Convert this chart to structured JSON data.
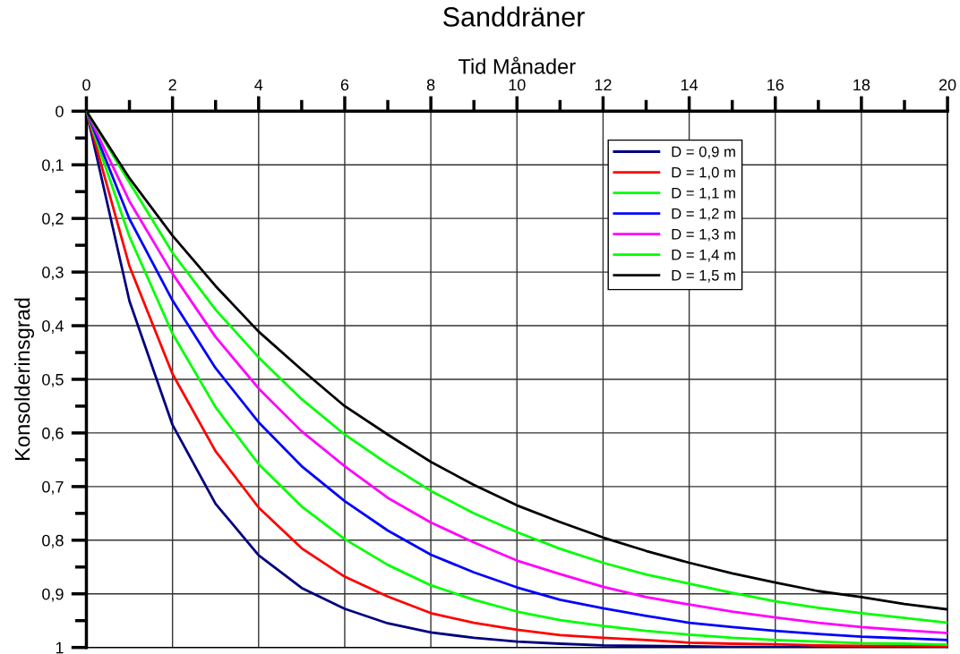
{
  "chart_data": {
    "type": "line",
    "title": "Sanddräner",
    "xlabel": "Tid Månader",
    "ylabel": "Konsolderinsgrad",
    "x": [
      0,
      1,
      2,
      3,
      4,
      5,
      6,
      7,
      8,
      9,
      10,
      11,
      12,
      13,
      14,
      15,
      16,
      17,
      18,
      19,
      20
    ],
    "xlim": [
      0,
      20
    ],
    "ylim": [
      1,
      0
    ],
    "xticks": [
      0,
      {
        "value": 1,
        "label": null
      },
      2,
      {
        "value": 3,
        "label": null
      },
      4,
      {
        "value": 5,
        "label": null
      },
      6,
      {
        "value": 7,
        "label": null
      },
      8,
      {
        "value": 9,
        "label": null
      },
      10,
      {
        "value": 11,
        "label": null
      },
      12,
      {
        "value": 13,
        "label": null
      },
      14,
      {
        "value": 15,
        "label": null
      },
      16,
      {
        "value": 17,
        "label": null
      },
      18,
      {
        "value": 19,
        "label": null
      },
      20
    ],
    "yticks": [
      0,
      {
        "value": 0.05,
        "label": null
      },
      {
        "value": 0.1,
        "label": "0,1"
      },
      {
        "value": 0.15,
        "label": null
      },
      {
        "value": 0.2,
        "label": "0,2"
      },
      {
        "value": 0.25,
        "label": null
      },
      {
        "value": 0.3,
        "label": "0,3"
      },
      {
        "value": 0.35,
        "label": null
      },
      {
        "value": 0.4,
        "label": "0,4"
      },
      {
        "value": 0.45,
        "label": null
      },
      {
        "value": 0.5,
        "label": "0,5"
      },
      {
        "value": 0.55,
        "label": null
      },
      {
        "value": 0.6,
        "label": "0,6"
      },
      {
        "value": 0.65,
        "label": null
      },
      {
        "value": 0.7,
        "label": "0,7"
      },
      {
        "value": 0.75,
        "label": null
      },
      {
        "value": 0.8,
        "label": "0,8"
      },
      {
        "value": 0.85,
        "label": null
      },
      {
        "value": 0.9,
        "label": "0,9"
      },
      {
        "value": 0.95,
        "label": null
      },
      1
    ],
    "grid": true,
    "legend": "top right",
    "marker": "none",
    "line_style": "solid",
    "series": [
      {
        "name": "D = 0,9 m",
        "color": "#000080",
        "values": [
          0,
          0.354,
          0.585,
          0.732,
          0.828,
          0.889,
          0.928,
          0.955,
          0.972,
          0.982,
          0.989,
          0.993,
          0.996,
          0.997,
          0.998,
          0.999,
          0.999,
          1,
          1,
          1,
          1
        ]
      },
      {
        "name": "D = 1,0 m",
        "color": "#ff0000",
        "values": [
          0,
          0.289,
          0.49,
          0.634,
          0.739,
          0.815,
          0.868,
          0.905,
          0.936,
          0.954,
          0.967,
          0.977,
          0.982,
          0.986,
          0.991,
          0.993,
          0.994,
          0.996,
          0.997,
          0.997,
          0.998
        ]
      },
      {
        "name": "D = 1,1 m",
        "color": "#00ff00",
        "values": [
          0,
          0.234,
          0.415,
          0.552,
          0.658,
          0.737,
          0.798,
          0.846,
          0.884,
          0.911,
          0.933,
          0.949,
          0.96,
          0.969,
          0.976,
          0.982,
          0.986,
          0.989,
          0.992,
          0.993,
          0.995
        ]
      },
      {
        "name": "D = 1,2 m",
        "color": "#0000ff",
        "values": [
          0,
          0.201,
          0.353,
          0.479,
          0.58,
          0.662,
          0.727,
          0.782,
          0.827,
          0.86,
          0.888,
          0.911,
          0.927,
          0.941,
          0.954,
          0.962,
          0.969,
          0.975,
          0.98,
          0.983,
          0.986
        ]
      },
      {
        "name": "D = 1,3 m",
        "color": "#ff00ff",
        "values": [
          0,
          0.168,
          0.303,
          0.421,
          0.517,
          0.597,
          0.662,
          0.721,
          0.767,
          0.804,
          0.838,
          0.863,
          0.887,
          0.906,
          0.92,
          0.933,
          0.944,
          0.954,
          0.962,
          0.968,
          0.973
        ]
      },
      {
        "name": "D = 1,4 m",
        "color": "#00ff00",
        "values": [
          0,
          0.133,
          0.264,
          0.37,
          0.459,
          0.537,
          0.603,
          0.658,
          0.708,
          0.75,
          0.785,
          0.816,
          0.842,
          0.864,
          0.881,
          0.898,
          0.914,
          0.926,
          0.936,
          0.945,
          0.954
        ]
      },
      {
        "name": "D = 1,5 m",
        "color": "#000000",
        "values": [
          0,
          0.125,
          0.232,
          0.326,
          0.411,
          0.482,
          0.55,
          0.603,
          0.654,
          0.697,
          0.735,
          0.766,
          0.795,
          0.82,
          0.842,
          0.862,
          0.879,
          0.895,
          0.906,
          0.919,
          0.929
        ]
      }
    ]
  }
}
